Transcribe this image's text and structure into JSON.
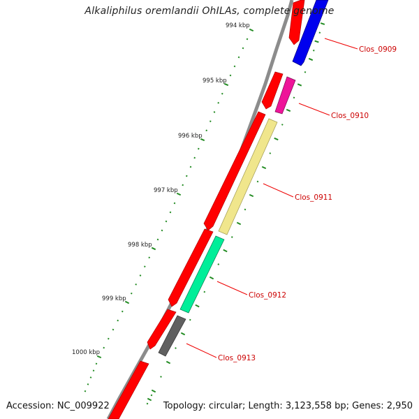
{
  "header": {
    "title": "Alkaliphilus oremlandii OhILAs, complete genome"
  },
  "footer": {
    "accession": "Accession: NC_009922",
    "summary": "Topology: circular; Length: 3,123,558 bp; Genes: 2,950"
  },
  "scale": {
    "tick_labels": [
      "994 kbp",
      "995 kbp",
      "996 kbp",
      "997 kbp",
      "998 kbp",
      "999 kbp",
      "1000 kbp"
    ]
  },
  "genes": [
    {
      "label": "Clos_0909",
      "color": "#0000ee"
    },
    {
      "label": "Clos_0910",
      "color": "#ee1599"
    },
    {
      "label": "Clos_0911",
      "color": "#f0e68c"
    },
    {
      "label": "Clos_0912",
      "color": "#00ee99"
    },
    {
      "label": "Clos_0913",
      "color": "#606060"
    }
  ],
  "colors": {
    "backbone": "#8c8c8c",
    "forward_strand": "#ff0000",
    "scale_ticks": "#228b22",
    "label_line": "#ee0000"
  }
}
